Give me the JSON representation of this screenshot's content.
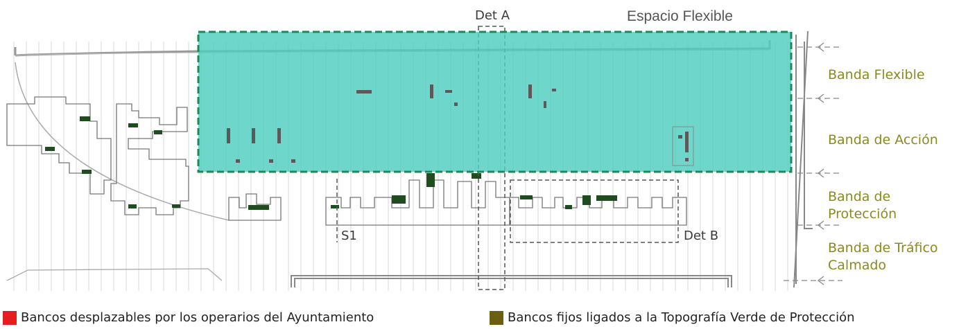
{
  "title": "Espacio Flexible",
  "details": {
    "a": "Det A",
    "b": "Det B",
    "section": "S1"
  },
  "bands": [
    {
      "label": "Banda Flexible"
    },
    {
      "label": "Banda de Acción"
    },
    {
      "label": "Banda de\nProtección"
    },
    {
      "label": "Banda de Tráfico\nCalmado"
    }
  ],
  "legend": [
    {
      "label": "Bancos desplazables por los operarios del Ayuntamiento",
      "color": "#e41e1e"
    },
    {
      "label": "Bancos fijos ligados a la Topografía Verde de Protección",
      "color": "#6b5f12"
    }
  ],
  "colors": {
    "flexible_area": "#4fcdc0",
    "flexible_border": "#1a8a5a",
    "bench_dark": "#1f4d1f",
    "bench_gray": "#5a5a5a",
    "band_text": "#8a8a1e"
  }
}
